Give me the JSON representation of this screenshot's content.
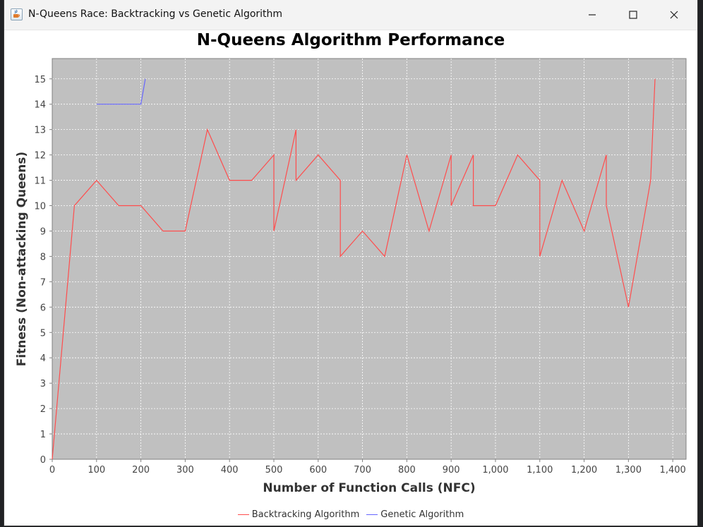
{
  "window": {
    "title": "N-Queens Race: Backtracking vs Genetic Algorithm",
    "icon": "java-coffee-icon",
    "buttons": [
      "minimize-icon",
      "maximize-icon",
      "close-icon"
    ]
  },
  "chart_data": {
    "type": "line",
    "title": "N-Queens Algorithm Performance",
    "xlabel": "Number of Function Calls (NFC)",
    "ylabel": "Fitness (Non-attacking Queens)",
    "xlim": [
      0,
      1430
    ],
    "ylim": [
      0,
      15.8
    ],
    "xticks": [
      0,
      100,
      200,
      300,
      400,
      500,
      600,
      700,
      800,
      900,
      1000,
      1100,
      1200,
      1300,
      1400
    ],
    "xtick_labels": [
      "0",
      "100",
      "200",
      "300",
      "400",
      "500",
      "600",
      "700",
      "800",
      "900",
      "1,000",
      "1,100",
      "1,200",
      "1,300",
      "1,400"
    ],
    "yticks": [
      0,
      1,
      2,
      3,
      4,
      5,
      6,
      7,
      8,
      9,
      10,
      11,
      12,
      13,
      14,
      15
    ],
    "ytick_labels": [
      "0",
      "1",
      "2",
      "3",
      "4",
      "5",
      "6",
      "7",
      "8",
      "9",
      "10",
      "11",
      "12",
      "13",
      "14",
      "15"
    ],
    "grid": true,
    "plot_background": "#c0c0c0",
    "legend_position": "bottom",
    "series": [
      {
        "name": "Backtracking Algorithm",
        "color": "#ff4d4d",
        "points": [
          [
            0,
            0
          ],
          [
            50,
            10
          ],
          [
            100,
            11
          ],
          [
            150,
            10
          ],
          [
            200,
            10
          ],
          [
            250,
            9
          ],
          [
            300,
            9
          ],
          [
            350,
            13
          ],
          [
            400,
            11
          ],
          [
            450,
            11
          ],
          [
            500,
            12
          ],
          [
            500,
            9
          ],
          [
            550,
            13
          ],
          [
            550,
            11
          ],
          [
            600,
            12
          ],
          [
            650,
            11
          ],
          [
            650,
            8
          ],
          [
            700,
            9
          ],
          [
            750,
            8
          ],
          [
            800,
            12
          ],
          [
            850,
            9
          ],
          [
            900,
            12
          ],
          [
            900,
            10
          ],
          [
            950,
            12
          ],
          [
            950,
            10
          ],
          [
            1000,
            10
          ],
          [
            1050,
            12
          ],
          [
            1100,
            11
          ],
          [
            1100,
            8
          ],
          [
            1150,
            11
          ],
          [
            1200,
            9
          ],
          [
            1250,
            12
          ],
          [
            1250,
            10
          ],
          [
            1300,
            6
          ],
          [
            1350,
            11
          ],
          [
            1360,
            15
          ]
        ]
      },
      {
        "name": "Genetic Algorithm",
        "color": "#6666ff",
        "points": [
          [
            100,
            14
          ],
          [
            200,
            14
          ],
          [
            210,
            15
          ]
        ]
      }
    ]
  }
}
